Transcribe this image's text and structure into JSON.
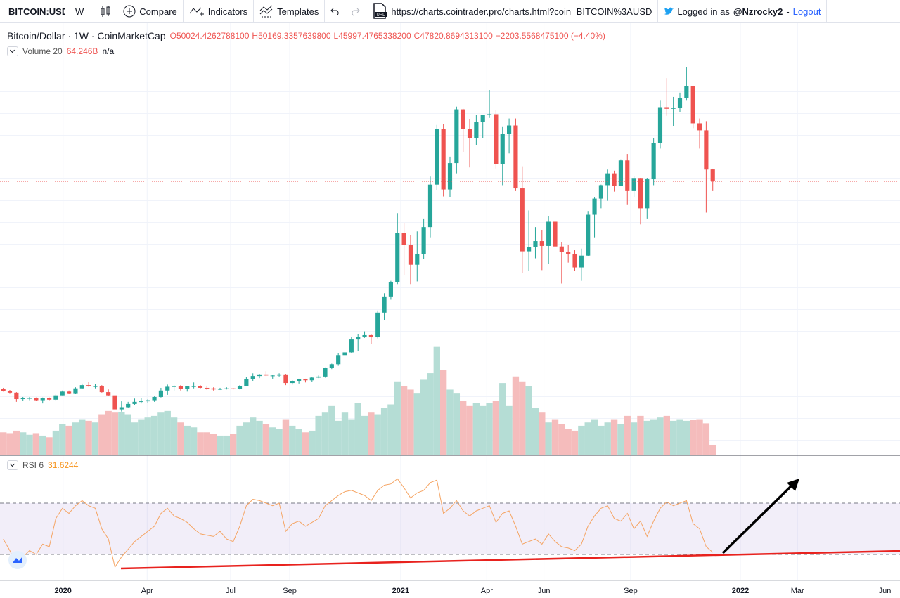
{
  "toolbar": {
    "symbol": "BITCOIN:USD",
    "interval": "W",
    "compare": "Compare",
    "indicators": "Indicators",
    "templates": "Templates",
    "url": "https://charts.cointrader.pro/charts.html?coin=BITCOIN%3AUSD",
    "logged_in": "Logged in as",
    "user": "@Nzrocky2",
    "separator": "-",
    "logout": "Logout"
  },
  "chart_data": {
    "type": "candlestick",
    "title": "Bitcoin/Dollar · 1W · CoinMarketCap",
    "ohlc_legend": [
      "O50024.4262788100",
      "H50169.3357639800",
      "L45997.4765338200",
      "C47820.8694313100",
      "−2203.5568475100 (−4.40%)"
    ],
    "up_color": "#26a69a",
    "down_color": "#ef5350",
    "ylim": [
      -3150,
      76300
    ],
    "xlim": [
      -0.5,
      136.5
    ],
    "xticks": [
      {
        "value": 9.1,
        "label": "2020"
      },
      {
        "value": 21.9,
        "label": "Apr"
      },
      {
        "value": 34.6,
        "label": "Jul"
      },
      {
        "value": 43.6,
        "label": "Sep"
      },
      {
        "value": 60.5,
        "label": "2021"
      },
      {
        "value": 73.6,
        "label": "Apr"
      },
      {
        "value": 82.3,
        "label": "Jun"
      },
      {
        "value": 95.5,
        "label": "Sep"
      },
      {
        "value": 112.2,
        "label": "2022"
      },
      {
        "value": 120.9,
        "label": "Mar"
      },
      {
        "value": 134.2,
        "label": "Jun"
      }
    ],
    "candles": [
      [
        9200,
        9400,
        8700,
        8800
      ],
      [
        8800,
        9000,
        8400,
        8500
      ],
      [
        8500,
        8600,
        6800,
        7300
      ],
      [
        7300,
        7700,
        7000,
        7500
      ],
      [
        7500,
        7700,
        7100,
        7500
      ],
      [
        7500,
        7600,
        7000,
        7100
      ],
      [
        7100,
        7600,
        6500,
        7500
      ],
      [
        7500,
        7600,
        7100,
        7200
      ],
      [
        7200,
        8200,
        6900,
        8000
      ],
      [
        8000,
        8900,
        8000,
        8700
      ],
      [
        8700,
        8900,
        8300,
        8400
      ],
      [
        8400,
        9500,
        8300,
        9300
      ],
      [
        9300,
        10200,
        9200,
        9900
      ],
      [
        9900,
        10500,
        9600,
        9700
      ],
      [
        9700,
        10100,
        9300,
        9700
      ],
      [
        9700,
        9900,
        8500,
        8600
      ],
      [
        8600,
        9100,
        7900,
        8000
      ],
      [
        8000,
        8100,
        4100,
        5400
      ],
      [
        5400,
        6900,
        5000,
        5800
      ],
      [
        5800,
        6800,
        5700,
        6400
      ],
      [
        6400,
        7400,
        6200,
        6800
      ],
      [
        6800,
        7500,
        6500,
        6900
      ],
      [
        6900,
        7300,
        6600,
        7100
      ],
      [
        7100,
        7800,
        6800,
        7700
      ],
      [
        7700,
        9400,
        7600,
        8900
      ],
      [
        8900,
        10000,
        8100,
        9600
      ],
      [
        9600,
        9900,
        8800,
        9700
      ],
      [
        9700,
        9900,
        8900,
        9200
      ],
      [
        9200,
        9700,
        8700,
        9700
      ],
      [
        9700,
        10400,
        9300,
        9700
      ],
      [
        9700,
        9900,
        9300,
        9400
      ],
      [
        9400,
        9800,
        9000,
        9300
      ],
      [
        9300,
        9500,
        8900,
        9100
      ],
      [
        9100,
        9400,
        9000,
        9200
      ],
      [
        9200,
        9500,
        9100,
        9300
      ],
      [
        9300,
        9400,
        9100,
        9200
      ],
      [
        9200,
        9900,
        9100,
        9700
      ],
      [
        9700,
        11400,
        9700,
        11000
      ],
      [
        11000,
        12100,
        10700,
        11600
      ],
      [
        11600,
        12000,
        11200,
        11900
      ],
      [
        11900,
        12500,
        11600,
        11700
      ],
      [
        11700,
        11800,
        11100,
        11700
      ],
      [
        11700,
        12100,
        11500,
        11900
      ],
      [
        11900,
        12000,
        9900,
        10300
      ],
      [
        10300,
        10800,
        10000,
        10700
      ],
      [
        10700,
        11100,
        10200,
        11000
      ],
      [
        11000,
        11100,
        10400,
        10800
      ],
      [
        10800,
        11400,
        10500,
        11300
      ],
      [
        11300,
        11700,
        11200,
        11500
      ],
      [
        11500,
        13200,
        11300,
        13100
      ],
      [
        13100,
        13900,
        12900,
        13800
      ],
      [
        13800,
        15900,
        13500,
        15500
      ],
      [
        15500,
        16400,
        14900,
        16000
      ],
      [
        16000,
        18800,
        15900,
        18400
      ],
      [
        18400,
        19400,
        16300,
        18800
      ],
      [
        18800,
        19900,
        18700,
        19200
      ],
      [
        19200,
        19400,
        17600,
        18800
      ],
      [
        18800,
        23800,
        18600,
        23400
      ],
      [
        23400,
        27000,
        22000,
        26400
      ],
      [
        26400,
        29300,
        25800,
        29000
      ],
      [
        29000,
        41900,
        28700,
        38200
      ],
      [
        38200,
        40100,
        30400,
        36000
      ],
      [
        36000,
        37800,
        28700,
        32300
      ],
      [
        32300,
        38500,
        29200,
        34300
      ],
      [
        34300,
        40900,
        33400,
        39300
      ],
      [
        39300,
        48700,
        37400,
        47200
      ],
      [
        47200,
        58300,
        46200,
        57500
      ],
      [
        57500,
        58400,
        45000,
        46300
      ],
      [
        46300,
        52400,
        44900,
        51200
      ],
      [
        51200,
        61700,
        49300,
        61200
      ],
      [
        61200,
        61300,
        53300,
        57500
      ],
      [
        57500,
        59400,
        50400,
        55800
      ],
      [
        55800,
        60100,
        54500,
        58800
      ],
      [
        58800,
        60200,
        55800,
        60100
      ],
      [
        60100,
        64800,
        59600,
        60300
      ],
      [
        60300,
        61100,
        50200,
        51000
      ],
      [
        51000,
        57900,
        47100,
        56600
      ],
      [
        56600,
        59500,
        53000,
        58200
      ],
      [
        58200,
        59500,
        46000,
        46500
      ],
      [
        46500,
        50600,
        30700,
        34800
      ],
      [
        34800,
        42400,
        31100,
        35600
      ],
      [
        35600,
        39300,
        33500,
        36700
      ],
      [
        36700,
        38800,
        31300,
        35800
      ],
      [
        35800,
        41300,
        32400,
        40300
      ],
      [
        40300,
        41300,
        33000,
        35700
      ],
      [
        35700,
        36500,
        28800,
        34700
      ],
      [
        34700,
        36000,
        32700,
        34300
      ],
      [
        34300,
        35000,
        31100,
        31800
      ],
      [
        31800,
        35300,
        29300,
        34000
      ],
      [
        34000,
        42300,
        33900,
        41600
      ],
      [
        41600,
        44800,
        37400,
        44600
      ],
      [
        44600,
        47200,
        42800,
        47100
      ],
      [
        47100,
        50000,
        44200,
        49300
      ],
      [
        49300,
        49800,
        45900,
        47000
      ],
      [
        47000,
        51900,
        46900,
        51700
      ],
      [
        51700,
        52900,
        43400,
        46000
      ],
      [
        46000,
        48800,
        44800,
        48300
      ],
      [
        48300,
        48400,
        39800,
        42800
      ],
      [
        42800,
        48400,
        40900,
        48200
      ],
      [
        48200,
        55800,
        47100,
        55000
      ],
      [
        55000,
        62800,
        53900,
        61600
      ],
      [
        61600,
        67000,
        60000,
        61300
      ],
      [
        61300,
        63500,
        58100,
        61500
      ],
      [
        61500,
        64300,
        60700,
        63300
      ],
      [
        63300,
        69000,
        62800,
        65500
      ],
      [
        65500,
        65600,
        57700,
        58600
      ],
      [
        58600,
        59500,
        53900,
        57300
      ],
      [
        57300,
        59000,
        42000,
        50000
      ],
      [
        50024.42627881,
        50169.33576398,
        45997.47653382,
        47820.86943131
      ]
    ],
    "y2lim": [
      0,
      2600
    ],
    "volume": {
      "name": "Volume 20",
      "legend_value": "64.246B",
      "legend_extra": "n/a",
      "axis": "y2",
      "up_color": "#b5ddd5",
      "down_color": "#f5bcbc",
      "values": [
        140,
        135,
        150,
        140,
        125,
        135,
        120,
        110,
        150,
        190,
        180,
        200,
        220,
        210,
        200,
        250,
        270,
        260,
        265,
        250,
        200,
        220,
        230,
        240,
        260,
        270,
        230,
        200,
        180,
        170,
        140,
        140,
        130,
        120,
        120,
        130,
        180,
        200,
        230,
        210,
        190,
        170,
        160,
        220,
        180,
        160,
        140,
        150,
        240,
        260,
        300,
        210,
        260,
        220,
        320,
        240,
        260,
        250,
        290,
        310,
        450,
        420,
        400,
        380,
        460,
        500,
        660,
        520,
        400,
        380,
        330,
        300,
        320,
        300,
        320,
        330,
        440,
        300,
        480,
        450,
        420,
        290,
        260,
        200,
        220,
        190,
        160,
        150,
        180,
        200,
        220,
        180,
        200,
        220,
        190,
        240,
        200,
        240,
        210,
        220,
        230,
        240,
        210,
        220,
        210,
        215,
        220,
        195,
        64.246
      ]
    },
    "rsi": {
      "name": "RSI 6",
      "legend_value": "31.6244",
      "color": "#f5a463",
      "ylim": [
        9.7,
        106.2
      ],
      "bands": [
        30,
        70
      ],
      "values": [
        42,
        33,
        22,
        28,
        33,
        30,
        38,
        36,
        58,
        66,
        62,
        68,
        72,
        68,
        66,
        50,
        42,
        20,
        28,
        34,
        40,
        44,
        48,
        52,
        62,
        66,
        60,
        58,
        55,
        50,
        46,
        45,
        44,
        48,
        42,
        40,
        52,
        68,
        73,
        72,
        70,
        68,
        70,
        48,
        54,
        56,
        52,
        55,
        58,
        68,
        72,
        76,
        79,
        80,
        78,
        76,
        72,
        80,
        84,
        85,
        89,
        82,
        74,
        78,
        80,
        86,
        88,
        62,
        66,
        72,
        64,
        60,
        64,
        66,
        68,
        55,
        62,
        64,
        52,
        38,
        40,
        42,
        38,
        46,
        40,
        36,
        35,
        33,
        38,
        52,
        60,
        66,
        68,
        58,
        56,
        62,
        50,
        56,
        44,
        56,
        66,
        71,
        68,
        70,
        72,
        54,
        50,
        36,
        31.6244
      ]
    }
  }
}
